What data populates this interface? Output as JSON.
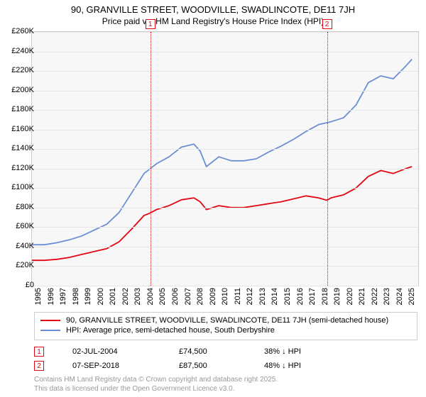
{
  "title": "90, GRANVILLE STREET, WOODVILLE, SWADLINCOTE, DE11 7JH",
  "subtitle": "Price paid vs. HM Land Registry's House Price Index (HPI)",
  "chart": {
    "type": "line",
    "background_color": "#f7f7f7",
    "grid_color": "#e6e6e6",
    "border_color": "#cccccc",
    "x_start_year": 1995,
    "x_end_year": 2026,
    "x_ticks": [
      1995,
      1996,
      1997,
      1998,
      1999,
      2000,
      2001,
      2002,
      2003,
      2004,
      2005,
      2006,
      2007,
      2008,
      2009,
      2010,
      2011,
      2012,
      2013,
      2014,
      2015,
      2016,
      2017,
      2018,
      2019,
      2020,
      2021,
      2022,
      2023,
      2024,
      2025
    ],
    "ylim": [
      0,
      260000
    ],
    "ytick_step": 20000,
    "yticks": [
      {
        "v": 0,
        "label": "£0"
      },
      {
        "v": 20000,
        "label": "£20K"
      },
      {
        "v": 40000,
        "label": "£40K"
      },
      {
        "v": 60000,
        "label": "£60K"
      },
      {
        "v": 80000,
        "label": "£80K"
      },
      {
        "v": 100000,
        "label": "£100K"
      },
      {
        "v": 120000,
        "label": "£120K"
      },
      {
        "v": 140000,
        "label": "£140K"
      },
      {
        "v": 160000,
        "label": "£160K"
      },
      {
        "v": 180000,
        "label": "£180K"
      },
      {
        "v": 200000,
        "label": "£200K"
      },
      {
        "v": 220000,
        "label": "£220K"
      },
      {
        "v": 240000,
        "label": "£240K"
      },
      {
        "v": 260000,
        "label": "£260K"
      }
    ],
    "title_fontsize": 13,
    "label_fontsize": 11,
    "line_width": 1.8,
    "series": [
      {
        "name": "property",
        "label": "90, GRANVILLE STREET, WOODVILLE, SWADLINCOTE, DE11 7JH (semi-detached house)",
        "color": "#e30613",
        "points": [
          [
            1995,
            26000
          ],
          [
            1996,
            26000
          ],
          [
            1997,
            27000
          ],
          [
            1998,
            29000
          ],
          [
            1999,
            32000
          ],
          [
            2000,
            35000
          ],
          [
            2001,
            38000
          ],
          [
            2002,
            45000
          ],
          [
            2003,
            58000
          ],
          [
            2004,
            72000
          ],
          [
            2004.5,
            74500
          ],
          [
            2005,
            78000
          ],
          [
            2006,
            82000
          ],
          [
            2007,
            88000
          ],
          [
            2008,
            90000
          ],
          [
            2008.5,
            86000
          ],
          [
            2009,
            78000
          ],
          [
            2010,
            82000
          ],
          [
            2011,
            80000
          ],
          [
            2012,
            80000
          ],
          [
            2013,
            82000
          ],
          [
            2014,
            84000
          ],
          [
            2015,
            86000
          ],
          [
            2016,
            89000
          ],
          [
            2017,
            92000
          ],
          [
            2018,
            90000
          ],
          [
            2018.68,
            87500
          ],
          [
            2019,
            90000
          ],
          [
            2020,
            93000
          ],
          [
            2021,
            100000
          ],
          [
            2022,
            112000
          ],
          [
            2023,
            118000
          ],
          [
            2024,
            115000
          ],
          [
            2025,
            120000
          ],
          [
            2025.5,
            122000
          ]
        ]
      },
      {
        "name": "hpi",
        "label": "HPI: Average price, semi-detached house, South Derbyshire",
        "color": "#6b8fd4",
        "points": [
          [
            1995,
            42000
          ],
          [
            1996,
            42000
          ],
          [
            1997,
            44000
          ],
          [
            1998,
            47000
          ],
          [
            1999,
            51000
          ],
          [
            2000,
            57000
          ],
          [
            2001,
            63000
          ],
          [
            2002,
            75000
          ],
          [
            2003,
            95000
          ],
          [
            2004,
            115000
          ],
          [
            2005,
            125000
          ],
          [
            2006,
            132000
          ],
          [
            2007,
            142000
          ],
          [
            2008,
            145000
          ],
          [
            2008.5,
            138000
          ],
          [
            2009,
            122000
          ],
          [
            2010,
            132000
          ],
          [
            2011,
            128000
          ],
          [
            2012,
            128000
          ],
          [
            2013,
            130000
          ],
          [
            2014,
            137000
          ],
          [
            2015,
            143000
          ],
          [
            2016,
            150000
          ],
          [
            2017,
            158000
          ],
          [
            2018,
            165000
          ],
          [
            2019,
            168000
          ],
          [
            2020,
            172000
          ],
          [
            2021,
            185000
          ],
          [
            2022,
            208000
          ],
          [
            2023,
            215000
          ],
          [
            2024,
            212000
          ],
          [
            2025,
            225000
          ],
          [
            2025.5,
            232000
          ]
        ]
      }
    ],
    "markers": [
      {
        "id": "1",
        "x": 2004.5,
        "color": "#e30613"
      },
      {
        "id": "2",
        "x": 2018.68,
        "color": "#e30613"
      }
    ]
  },
  "legend": {
    "border_color": "#cccccc"
  },
  "sales": [
    {
      "id": "1",
      "date": "02-JUL-2004",
      "price": "£74,500",
      "delta": "38% ↓ HPI",
      "color": "#e30613"
    },
    {
      "id": "2",
      "date": "07-SEP-2018",
      "price": "£87,500",
      "delta": "48% ↓ HPI",
      "color": "#e30613"
    }
  ],
  "footer_line1": "Contains HM Land Registry data © Crown copyright and database right 2025.",
  "footer_line2": "This data is licensed under the Open Government Licence v3.0."
}
